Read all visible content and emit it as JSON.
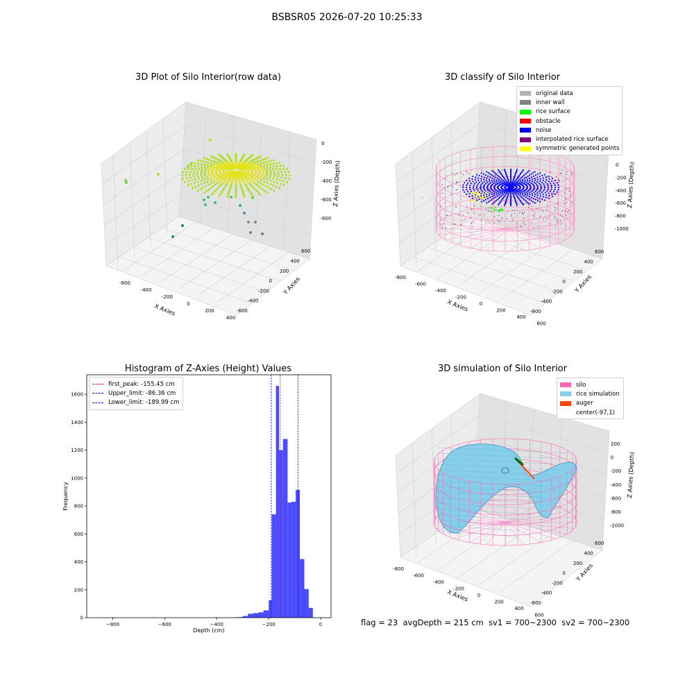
{
  "suptitle": "BSBSR05 2026-07-20 10:25:33",
  "plot1": {
    "title": "3D Plot of Silo Interior(row data)",
    "xlabel": "X Axies",
    "ylabel": "Y Axies",
    "zlabel": "Z Axies (Depth)",
    "x_ticks": [
      "-600",
      "-400",
      "-200",
      "0",
      "200",
      "400"
    ],
    "y_ticks": [
      "-600",
      "-400",
      "-200",
      "0",
      "200",
      "400",
      "600"
    ],
    "z_ticks": [
      "0",
      "-200",
      "-400",
      "-600",
      "-800"
    ]
  },
  "plot2": {
    "title": "3D classify of Silo Interior",
    "xlabel": "X Axies",
    "ylabel": "Y Axies",
    "zlabel": "Z Axies (Depth)",
    "x_ticks": [
      "-800",
      "-600",
      "-400",
      "-200",
      "0",
      "200",
      "400",
      "600"
    ],
    "y_ticks": [
      "-600",
      "-400",
      "-200",
      "0",
      "200",
      "400",
      "600"
    ],
    "z_ticks": [
      "0",
      "-200",
      "-400",
      "-600",
      "-800",
      "-1000"
    ],
    "legend": [
      {
        "label": "original data",
        "color": "#b3b3b3"
      },
      {
        "label": "inner wall",
        "color": "#808080"
      },
      {
        "label": "rice surface",
        "color": "#00ff00"
      },
      {
        "label": "obstacle",
        "color": "#ff0000"
      },
      {
        "label": "noise",
        "color": "#0000ff"
      },
      {
        "label": "interpolated rice surface",
        "color": "#800080"
      },
      {
        "label": "symmetric generated points",
        "color": "#ffff00"
      }
    ]
  },
  "plot4": {
    "title": "3D simulation of Silo Interior",
    "xlabel": "X Axies",
    "ylabel": "Y Axies",
    "zlabel": "Z Axies (Depth)",
    "x_ticks": [
      "-800",
      "-600",
      "-400",
      "-200",
      "0",
      "200",
      "400",
      "600"
    ],
    "y_ticks": [
      "-600",
      "-400",
      "-200",
      "0",
      "200",
      "400",
      "600"
    ],
    "z_ticks": [
      "200",
      "0",
      "-200",
      "-400",
      "-600",
      "-800",
      "-1000"
    ],
    "legend": [
      {
        "label": "silo",
        "color": "#ff69b4"
      },
      {
        "label": "rice simulation",
        "color": "#87ceeb"
      },
      {
        "label": "auger",
        "color": "#ff4500"
      },
      {
        "label": "center(-97,1)",
        "color": "#ffffff"
      }
    ]
  },
  "chart_data": {
    "type": "bar",
    "title": "Histogram of Z-Axies (Height) Values",
    "xlabel": "Depth (cm)",
    "ylabel": "Frequency",
    "xlim": [
      -900,
      40
    ],
    "ylim": [
      0,
      1740
    ],
    "x_ticks": [
      -800,
      -600,
      -400,
      -200,
      0
    ],
    "y_ticks": [
      0,
      200,
      400,
      600,
      800,
      1000,
      1200,
      1400,
      1600
    ],
    "bar_color": "#0000ff",
    "bins": [
      {
        "x0": -340,
        "x1": -320,
        "value": 2
      },
      {
        "x0": -320,
        "x1": -300,
        "value": 4
      },
      {
        "x0": -300,
        "x1": -280,
        "value": 12
      },
      {
        "x0": -280,
        "x1": -260,
        "value": 28
      },
      {
        "x0": -260,
        "x1": -240,
        "value": 33
      },
      {
        "x0": -240,
        "x1": -220,
        "value": 38
      },
      {
        "x0": -220,
        "x1": -200,
        "value": 52
      },
      {
        "x0": -200,
        "x1": -188,
        "value": 125
      },
      {
        "x0": -188,
        "x1": -172,
        "value": 740
      },
      {
        "x0": -172,
        "x1": -160,
        "value": 1660
      },
      {
        "x0": -160,
        "x1": -145,
        "value": 1200
      },
      {
        "x0": -145,
        "x1": -127,
        "value": 1280
      },
      {
        "x0": -127,
        "x1": -112,
        "value": 825
      },
      {
        "x0": -112,
        "x1": -96,
        "value": 830
      },
      {
        "x0": -96,
        "x1": -80,
        "value": 915
      },
      {
        "x0": -80,
        "x1": -63,
        "value": 420
      },
      {
        "x0": -63,
        "x1": -46,
        "value": 205
      },
      {
        "x0": -46,
        "x1": -30,
        "value": 70
      }
    ],
    "lines": [
      {
        "label": "first_peak: -155.45 cm",
        "x": -155.45,
        "color": "#ff0000"
      },
      {
        "label": "Upper_limit: -86.36 cm",
        "x": -86.36,
        "color": "#0000cd"
      },
      {
        "label": "Lower_limit: -189.99 cm",
        "x": -189.99,
        "color": "#0000cd"
      }
    ]
  },
  "footer": {
    "text": "flag = 23  avgDepth = 215 cm  sv1 = 700~2300  sv2 = 700~2300"
  }
}
